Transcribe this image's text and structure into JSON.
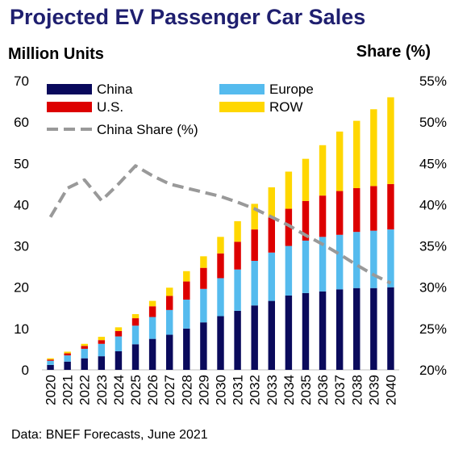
{
  "chart_data": {
    "type": "bar",
    "title": "Projected EV Passenger Car Sales",
    "ylabel": "Million Units",
    "y2label": "Share (%)",
    "source": "Data: BNEF Forecasts, June 2021",
    "ylim": [
      0,
      70
    ],
    "yticks": [
      "0",
      "10",
      "20",
      "30",
      "40",
      "50",
      "60",
      "70"
    ],
    "y2lim": [
      20,
      55
    ],
    "y2ticks": [
      "20%",
      "25%",
      "30%",
      "35%",
      "40%",
      "45%",
      "50%",
      "55%"
    ],
    "categories": [
      "2020",
      "2021",
      "2022",
      "2023",
      "2024",
      "2025",
      "2026",
      "2027",
      "2028",
      "2029",
      "2030",
      "2031",
      "2032",
      "2033",
      "2034",
      "2035",
      "2036",
      "2037",
      "2038",
      "2039",
      "2040"
    ],
    "legend_position": "top-left",
    "series": [
      {
        "name": "China",
        "color": "#0a0a5c",
        "values": [
          1.2,
          2.0,
          2.8,
          3.3,
          4.5,
          6.2,
          7.5,
          8.5,
          10.0,
          11.5,
          13.0,
          14.3,
          15.6,
          16.7,
          18.0,
          18.6,
          19.0,
          19.5,
          19.8,
          19.8,
          20.0
        ]
      },
      {
        "name": "Europe",
        "color": "#55bbee",
        "values": [
          1.0,
          1.5,
          2.3,
          3.0,
          3.6,
          4.5,
          5.3,
          6.0,
          7.0,
          8.1,
          9.2,
          10.0,
          10.8,
          11.7,
          12.0,
          12.7,
          13.2,
          13.2,
          13.6,
          13.9,
          14.0
        ]
      },
      {
        "name": "U.S.",
        "color": "#dd0000",
        "values": [
          0.3,
          0.5,
          0.7,
          0.9,
          1.3,
          1.8,
          2.6,
          3.4,
          4.4,
          5.1,
          6.0,
          6.7,
          7.6,
          8.5,
          9.0,
          9.6,
          10.0,
          10.6,
          10.6,
          10.8,
          11.0
        ]
      },
      {
        "name": "ROW",
        "color": "#ffd700",
        "values": [
          0.3,
          0.4,
          0.5,
          0.8,
          0.9,
          1.0,
          1.3,
          2.0,
          2.5,
          2.8,
          4.0,
          5.0,
          6.2,
          7.3,
          9.0,
          10.2,
          12.2,
          14.4,
          16.3,
          18.6,
          21.0
        ]
      }
    ],
    "line_series": {
      "name": "China Share (%)",
      "axis": "right",
      "color": "#999999",
      "style": "dashed",
      "values": [
        38.5,
        42.0,
        43.0,
        40.5,
        42.5,
        44.7,
        43.5,
        42.5,
        42.0,
        41.5,
        41.0,
        40.3,
        39.5,
        38.5,
        37.5,
        36.3,
        35.2,
        34.0,
        32.7,
        31.5,
        30.5
      ]
    }
  }
}
